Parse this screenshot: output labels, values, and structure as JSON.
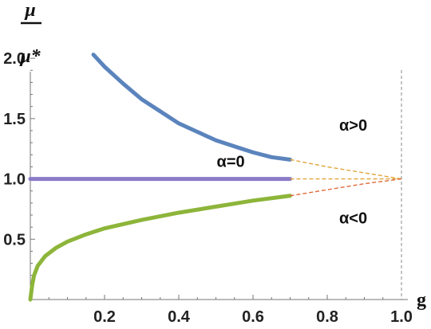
{
  "chart_data": {
    "type": "line",
    "ylabel_top": "μ",
    "ylabel_bottom": "μ*",
    "xlabel": "g",
    "xlim": [
      0,
      1.0
    ],
    "ylim": [
      0,
      2.1
    ],
    "x_ticks": [
      0.2,
      0.4,
      0.6,
      0.8,
      1.0
    ],
    "x_tick_labels": [
      "0.2",
      "0.4",
      "0.6",
      "0.8",
      "1.0"
    ],
    "y_ticks": [
      0.5,
      1.0,
      1.5,
      2.0
    ],
    "y_tick_labels": [
      "0.5",
      "1.0",
      "1.5",
      "2.0"
    ],
    "reference_line_x": 1.0,
    "series": [
      {
        "name": "α>0",
        "color": "#5b84bd",
        "style": "solid",
        "x": [
          0.17,
          0.2,
          0.25,
          0.3,
          0.35,
          0.4,
          0.45,
          0.5,
          0.55,
          0.6,
          0.65,
          0.7
        ],
        "values": [
          2.03,
          1.93,
          1.79,
          1.66,
          1.56,
          1.46,
          1.39,
          1.32,
          1.27,
          1.22,
          1.18,
          1.16
        ]
      },
      {
        "name": "α=0",
        "color": "#8a7ac7",
        "style": "solid",
        "x": [
          0.0,
          0.7
        ],
        "values": [
          1.0,
          1.0
        ]
      },
      {
        "name": "α<0",
        "color": "#8db53a",
        "style": "solid",
        "x": [
          0.0,
          0.005,
          0.01,
          0.02,
          0.04,
          0.07,
          0.1,
          0.15,
          0.2,
          0.3,
          0.4,
          0.5,
          0.6,
          0.7
        ],
        "values": [
          0.0,
          0.12,
          0.2,
          0.28,
          0.36,
          0.43,
          0.48,
          0.54,
          0.59,
          0.66,
          0.72,
          0.77,
          0.82,
          0.86
        ]
      },
      {
        "color": "#e0a43a",
        "style": "dashed",
        "x": [
          0.7,
          0.8,
          0.9,
          1.0
        ],
        "values": [
          1.16,
          1.1,
          1.05,
          1.0
        ]
      },
      {
        "color": "#e0a43a",
        "style": "dashed",
        "x": [
          0.7,
          1.0
        ],
        "values": [
          1.0,
          1.0
        ]
      },
      {
        "color": "#e06a3a",
        "style": "dashed",
        "x": [
          0.7,
          0.8,
          0.9,
          1.0
        ],
        "values": [
          0.86,
          0.91,
          0.96,
          1.0
        ]
      }
    ],
    "annotations": [
      {
        "text": "α>0",
        "x": 0.87,
        "y": 1.4,
        "anchor": "middle"
      },
      {
        "text": "α=0",
        "x": 0.54,
        "y": 1.1,
        "anchor": "middle"
      },
      {
        "text": "α<0",
        "x": 0.87,
        "y": 0.63,
        "anchor": "middle"
      }
    ]
  }
}
